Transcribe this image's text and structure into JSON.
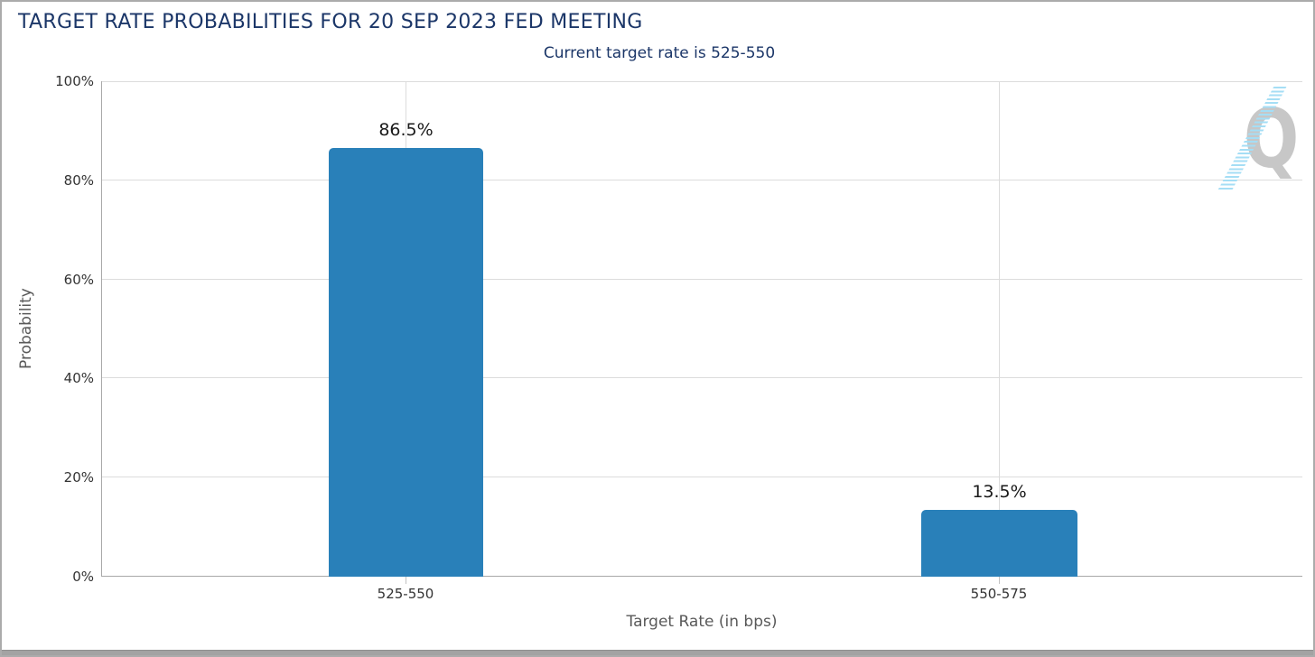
{
  "header": {
    "title": "TARGET RATE PROBABILITIES FOR 20 SEP 2023 FED MEETING",
    "subtitle": "Current target rate is 525-550",
    "title_color": "#1b3668"
  },
  "chart_data": {
    "type": "bar",
    "title": "TARGET RATE PROBABILITIES FOR 20 SEP 2023 FED MEETING",
    "subtitle": "Current target rate is 525-550",
    "categories": [
      "525-550",
      "550-575"
    ],
    "values": [
      86.5,
      13.5
    ],
    "value_labels": [
      "86.5%",
      "13.5%"
    ],
    "xlabel": "Target Rate (in bps)",
    "ylabel": "Probability",
    "ylim": [
      0,
      100
    ],
    "y_ticks": [
      "0%",
      "20%",
      "40%",
      "60%",
      "80%",
      "100%"
    ],
    "grid": true,
    "legend": "none",
    "bar_color": "#2980b9",
    "gridline_color": "#dcdcdc",
    "axis_color": "#a8a8a8"
  },
  "watermark": {
    "letter": "Q",
    "letter_color": "#c7c7c7",
    "stripe_color": "#a5def5"
  }
}
